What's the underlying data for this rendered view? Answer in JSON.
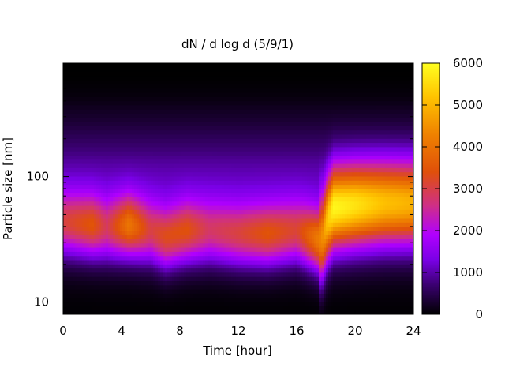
{
  "chart_data": {
    "type": "heatmap",
    "title": "dN / d log d (5/9/1)",
    "xlabel": "Time [hour]",
    "ylabel": "Particle size [nm]",
    "xlim": [
      0,
      24
    ],
    "ylim_nm": [
      8,
      800
    ],
    "y_scale": "log",
    "x_ticks": [
      0,
      4,
      8,
      12,
      16,
      20,
      24
    ],
    "y_ticks": [
      10,
      100
    ],
    "colorbar": {
      "range": [
        0,
        6000
      ],
      "ticks": [
        0,
        1000,
        2000,
        3000,
        4000,
        5000,
        6000
      ],
      "colormap": [
        {
          "value": 0,
          "color": "#000000"
        },
        {
          "value": 700,
          "color": "#3a0070"
        },
        {
          "value": 1300,
          "color": "#7a00e6"
        },
        {
          "value": 1900,
          "color": "#b000ff"
        },
        {
          "value": 2600,
          "color": "#cf2f86"
        },
        {
          "value": 3400,
          "color": "#e0500a"
        },
        {
          "value": 4300,
          "color": "#ef8200"
        },
        {
          "value": 5200,
          "color": "#ffc400"
        },
        {
          "value": 6000,
          "color": "#ffff20"
        }
      ]
    },
    "grid": false,
    "mode_size_nm_by_hour": [
      {
        "hour": 0,
        "mode_nm": 42,
        "peak": 2200
      },
      {
        "hour": 2,
        "mode_nm": 40,
        "peak": 2700
      },
      {
        "hour": 3,
        "mode_nm": 38,
        "peak": 2100
      },
      {
        "hour": 4.5,
        "mode_nm": 40,
        "peak": 3300
      },
      {
        "hour": 6,
        "mode_nm": 36,
        "peak": 2300
      },
      {
        "hour": 7,
        "mode_nm": 32,
        "peak": 2700
      },
      {
        "hour": 8.5,
        "mode_nm": 36,
        "peak": 2700
      },
      {
        "hour": 10,
        "mode_nm": 36,
        "peak": 2100
      },
      {
        "hour": 12,
        "mode_nm": 34,
        "peak": 2400
      },
      {
        "hour": 14,
        "mode_nm": 34,
        "peak": 2800
      },
      {
        "hour": 16,
        "mode_nm": 36,
        "peak": 2400
      },
      {
        "hour": 17.7,
        "mode_nm": 30,
        "peak": 3800
      },
      {
        "hour": 18.5,
        "mode_nm": 55,
        "peak": 4900
      },
      {
        "hour": 20,
        "mode_nm": 58,
        "peak": 4600
      },
      {
        "hour": 22,
        "mode_nm": 60,
        "peak": 4100
      },
      {
        "hour": 24,
        "mode_nm": 60,
        "peak": 3900
      }
    ]
  }
}
